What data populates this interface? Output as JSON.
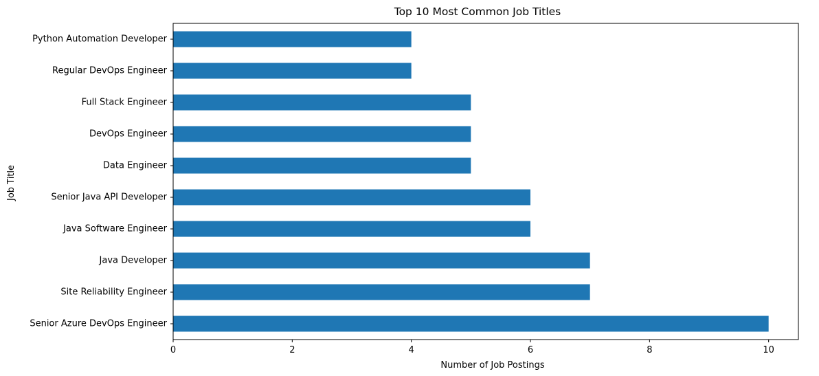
{
  "chart_data": {
    "type": "bar",
    "orientation": "horizontal",
    "title": "Top 10 Most Common Job Titles",
    "xlabel": "Number of Job Postings",
    "ylabel": "Job Title",
    "categories": [
      "Senior Azure DevOps Engineer",
      "Site Reliability Engineer",
      "Java Developer",
      "Java Software Engineer",
      "Senior Java API Developer",
      "Data Engineer",
      "DevOps Engineer",
      "Full Stack Engineer",
      "Regular DevOps Engineer",
      "Python Automation Developer"
    ],
    "values": [
      10,
      7,
      7,
      6,
      6,
      5,
      5,
      5,
      4,
      4
    ],
    "xlim": [
      0,
      10.5
    ],
    "xticks": [
      0,
      2,
      4,
      6,
      8,
      10
    ],
    "grid": false,
    "legend": "none",
    "bar_color": "#1f77b4"
  }
}
